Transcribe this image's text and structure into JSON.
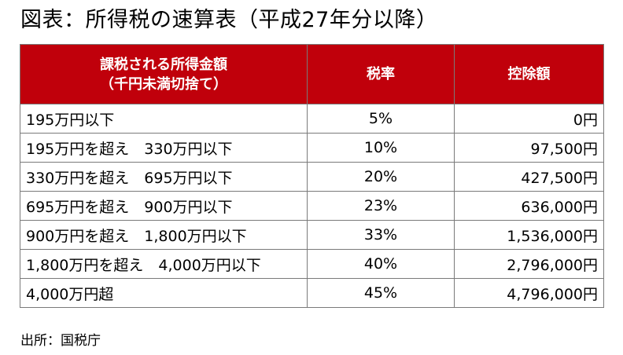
{
  "title": "図表：所得税の速算表（平成27年分以降）",
  "table": {
    "headers": {
      "income_line1": "課税される所得金額",
      "income_line2": "（千円未満切捨て）",
      "rate": "税率",
      "deduction": "控除額"
    },
    "rows": [
      {
        "income": "195万円以下",
        "rate": "5%",
        "deduction": "0円"
      },
      {
        "income": "195万円を超え　330万円以下",
        "rate": "10%",
        "deduction": "97,500円"
      },
      {
        "income": "330万円を超え　695万円以下",
        "rate": "20%",
        "deduction": "427,500円"
      },
      {
        "income": "695万円を超え　900万円以下",
        "rate": "23%",
        "deduction": "636,000円"
      },
      {
        "income": "900万円を超え　1,800万円以下",
        "rate": "33%",
        "deduction": "1,536,000円"
      },
      {
        "income": "1,800万円を超え　4,000万円以下",
        "rate": "40%",
        "deduction": "2,796,000円"
      },
      {
        "income": "4,000万円超",
        "rate": "45%",
        "deduction": "4,796,000円"
      }
    ]
  },
  "source": "出所：国税庁",
  "colors": {
    "header_background": "#c0000b",
    "header_text": "#ffffff",
    "border": "#7a7a7a"
  }
}
